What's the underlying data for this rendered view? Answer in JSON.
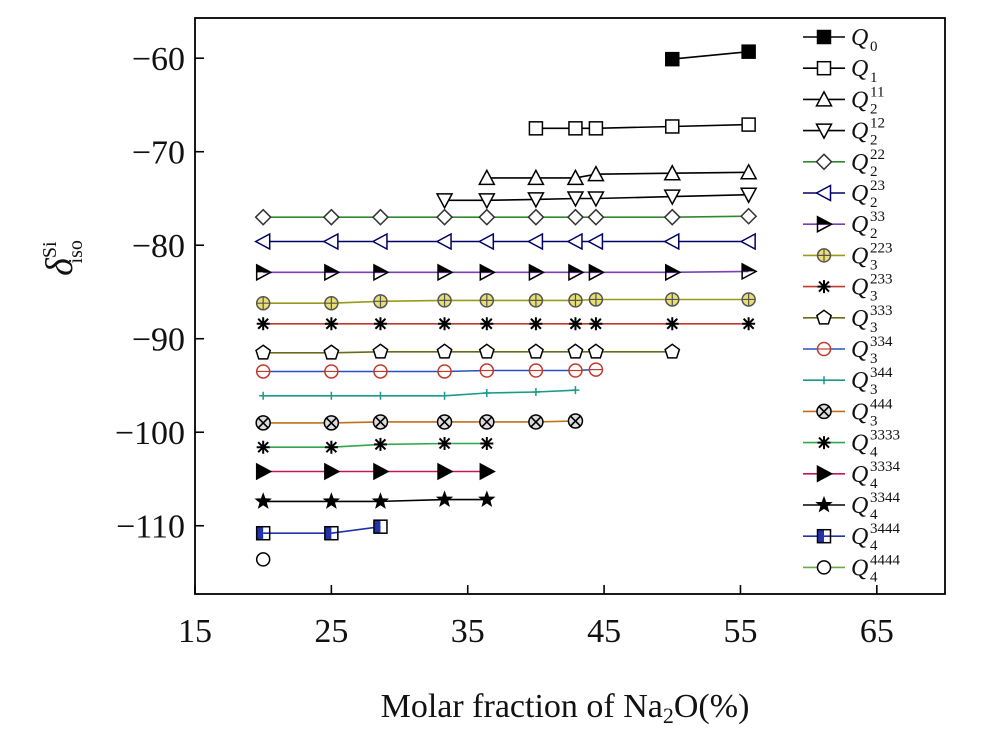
{
  "chart_data": {
    "type": "line",
    "title": "",
    "xlabel": {
      "prefix": "Molar fraction of Na",
      "sub": "2",
      "suffix": "O(%)"
    },
    "ylabel": {
      "base": "δ",
      "sup": "Si",
      "sub": "iso"
    },
    "xlim": [
      15,
      70
    ],
    "ylim": [
      -117,
      -56
    ],
    "x_ticks": [
      15,
      25,
      35,
      45,
      55,
      65
    ],
    "x_tick_labels": [
      "15",
      "25",
      "35",
      "45",
      "55",
      "65"
    ],
    "y_ticks": [
      -60,
      -70,
      -80,
      -90,
      -100,
      -110
    ],
    "y_tick_labels": [
      "−60",
      "−70",
      "−80",
      "−90",
      "−100",
      "−110"
    ],
    "grid": false,
    "legend_position": "right",
    "series": [
      {
        "name": "Q0",
        "base": "Q",
        "sub": "0",
        "sup": "",
        "color": "#000000",
        "marker": "square-filled",
        "x": [
          50,
          55.6
        ],
        "y": [
          -60.1,
          -59.3
        ]
      },
      {
        "name": "Q1",
        "base": "Q",
        "sub": "1",
        "sup": "",
        "color": "#000000",
        "marker": "square-open",
        "x": [
          40,
          42.9,
          44.4,
          50,
          55.6
        ],
        "y": [
          -67.5,
          -67.5,
          -67.5,
          -67.3,
          -67.1
        ]
      },
      {
        "name": "Q2^11",
        "base": "Q",
        "sub": "2",
        "sup": "11",
        "color": "#000000",
        "marker": "triangle-up",
        "x": [
          36.4,
          40,
          42.9,
          44.4,
          50,
          55.6
        ],
        "y": [
          -72.8,
          -72.8,
          -72.8,
          -72.4,
          -72.3,
          -72.2
        ]
      },
      {
        "name": "Q2^12",
        "base": "Q",
        "sub": "2",
        "sup": "12",
        "color": "#000000",
        "marker": "triangle-down",
        "x": [
          33.3,
          36.4,
          40,
          42.9,
          44.4,
          50,
          55.6
        ],
        "y": [
          -75.2,
          -75.2,
          -75.1,
          -75,
          -75,
          -74.8,
          -74.6
        ]
      },
      {
        "name": "Q2^22",
        "base": "Q",
        "sub": "2",
        "sup": "22",
        "color": "#2f8a2f",
        "marker": "diamond",
        "x": [
          20,
          25,
          28.6,
          33.3,
          36.4,
          40,
          42.9,
          44.4,
          50,
          55.6
        ],
        "y": [
          -77,
          -77,
          -77,
          -77,
          -77,
          -77,
          -77,
          -77,
          -77,
          -76.9
        ]
      },
      {
        "name": "Q2^23",
        "base": "Q",
        "sub": "2",
        "sup": "23",
        "color": "#000066",
        "marker": "triangle-left",
        "x": [
          20,
          25,
          28.6,
          33.3,
          36.4,
          40,
          42.9,
          44.4,
          50,
          55.6
        ],
        "y": [
          -79.6,
          -79.6,
          -79.6,
          -79.6,
          -79.6,
          -79.6,
          -79.6,
          -79.6,
          -79.6,
          -79.6
        ]
      },
      {
        "name": "Q2^33",
        "base": "Q",
        "sub": "2",
        "sup": "33",
        "color": "#7b3fb8",
        "marker": "triangle-right-half",
        "x": [
          20,
          25,
          28.6,
          33.3,
          36.4,
          40,
          42.9,
          44.4,
          50,
          55.6
        ],
        "y": [
          -82.9,
          -82.9,
          -82.9,
          -82.9,
          -82.9,
          -82.9,
          -82.9,
          -82.9,
          -82.9,
          -82.8
        ]
      },
      {
        "name": "Q3^223",
        "base": "Q",
        "sub": "3",
        "sup": "223",
        "color": "#9a9a1a",
        "marker": "circle-plus",
        "x": [
          20,
          25,
          28.6,
          33.3,
          36.4,
          40,
          42.9,
          44.4,
          50,
          55.6
        ],
        "y": [
          -86.2,
          -86.2,
          -86,
          -85.9,
          -85.9,
          -85.9,
          -85.9,
          -85.8,
          -85.8,
          -85.8
        ]
      },
      {
        "name": "Q3^233",
        "base": "Q",
        "sub": "3",
        "sup": "233",
        "color": "#c0392b",
        "marker": "asterisk",
        "x": [
          20,
          25,
          28.6,
          33.3,
          36.4,
          40,
          42.9,
          44.4,
          50,
          55.6
        ],
        "y": [
          -88.4,
          -88.4,
          -88.4,
          -88.4,
          -88.4,
          -88.4,
          -88.4,
          -88.4,
          -88.4,
          -88.4
        ]
      },
      {
        "name": "Q3^333",
        "base": "Q",
        "sub": "3",
        "sup": "333",
        "color": "#6b6b1a",
        "marker": "pentagon",
        "x": [
          20,
          25,
          28.6,
          33.3,
          36.4,
          40,
          42.9,
          44.4,
          50
        ],
        "y": [
          -91.5,
          -91.5,
          -91.4,
          -91.4,
          -91.4,
          -91.4,
          -91.4,
          -91.4,
          -91.4
        ]
      },
      {
        "name": "Q3^334",
        "base": "Q",
        "sub": "3",
        "sup": "334",
        "color": "#2950c0",
        "marker": "circle-bar",
        "x": [
          20,
          25,
          28.6,
          33.3,
          36.4,
          40,
          42.9,
          44.4
        ],
        "y": [
          -93.5,
          -93.5,
          -93.5,
          -93.5,
          -93.4,
          -93.4,
          -93.4,
          -93.3
        ]
      },
      {
        "name": "Q3^344",
        "base": "Q",
        "sub": "3",
        "sup": "344",
        "color": "#1a9a8a",
        "marker": "plus",
        "x": [
          20,
          25,
          28.6,
          33.3,
          36.4,
          40,
          42.9
        ],
        "y": [
          -96.1,
          -96.1,
          -96.1,
          -96.1,
          -95.8,
          -95.7,
          -95.5
        ]
      },
      {
        "name": "Q3^444",
        "base": "Q",
        "sub": "3",
        "sup": "444",
        "color": "#c0701a",
        "marker": "circle-x",
        "x": [
          20,
          25,
          28.6,
          33.3,
          36.4,
          40,
          42.9
        ],
        "y": [
          -99,
          -99,
          -98.9,
          -98.9,
          -98.9,
          -98.9,
          -98.8
        ]
      },
      {
        "name": "Q4^3333",
        "base": "Q",
        "sub": "4",
        "sup": "3333",
        "color": "#2ea84a",
        "marker": "asterisk",
        "x": [
          20,
          25,
          28.6,
          33.3,
          36.4
        ],
        "y": [
          -101.6,
          -101.6,
          -101.3,
          -101.2,
          -101.2
        ]
      },
      {
        "name": "Q4^3334",
        "base": "Q",
        "sub": "4",
        "sup": "3334",
        "color": "#c2185b",
        "marker": "triangle-right",
        "x": [
          20,
          25,
          28.6,
          33.3,
          36.4
        ],
        "y": [
          -104.2,
          -104.2,
          -104.2,
          -104.2,
          -104.2
        ]
      },
      {
        "name": "Q4^3344",
        "base": "Q",
        "sub": "4",
        "sup": "3344",
        "color": "#000000",
        "marker": "star",
        "x": [
          20,
          25,
          28.6,
          33.3,
          36.4
        ],
        "y": [
          -107.4,
          -107.4,
          -107.4,
          -107.2,
          -107.2
        ]
      },
      {
        "name": "Q4^3444",
        "base": "Q",
        "sub": "4",
        "sup": "3444",
        "color": "#2233aa",
        "marker": "square-half",
        "x": [
          20,
          25,
          28.6
        ],
        "y": [
          -110.8,
          -110.8,
          -110.1
        ]
      },
      {
        "name": "Q4^4444",
        "base": "Q",
        "sub": "4",
        "sup": "4444",
        "color": "#6aa84f",
        "marker": "circle-open",
        "x": [
          20
        ],
        "y": [
          -113.6
        ]
      }
    ]
  }
}
